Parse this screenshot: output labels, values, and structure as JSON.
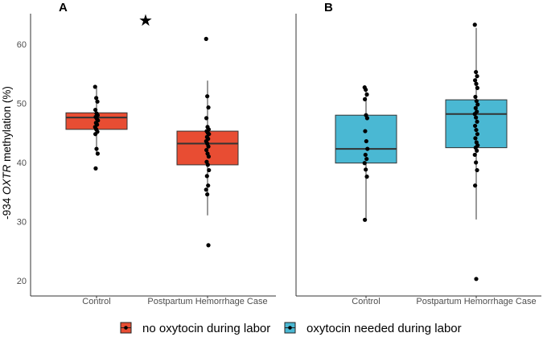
{
  "chart_data": {
    "type": "box",
    "ylabel_prefix": "-934 ",
    "ylabel_gene": "OXTR",
    "ylabel_suffix": " methylation (%)",
    "y_ticks": [
      20,
      30,
      40,
      50,
      60
    ],
    "ylim": [
      19,
      66
    ],
    "categories": [
      "Control",
      "Postpartum Hemorrhage Case"
    ],
    "annotation": "★",
    "panels": [
      {
        "label": "A",
        "series_name": "no oxytocin during labor",
        "color": "#e84d33",
        "boxes": [
          {
            "category": "Control",
            "q1": 45.6,
            "median": 47.6,
            "q3": 48.4,
            "points": [
              52.8,
              50.9,
              50.3,
              48.9,
              48.3,
              48.0,
              47.7,
              47.4,
              47.1,
              46.7,
              46.4,
              46.0,
              45.6,
              45.2,
              44.8,
              42.3,
              41.5,
              39.0
            ]
          },
          {
            "category": "Postpartum Hemorrhage Case",
            "q1": 39.6,
            "median": 43.2,
            "q3": 45.3,
            "points": [
              60.9,
              51.2,
              49.3,
              47.5,
              46.0,
              45.6,
              45.3,
              45.0,
              44.8,
              44.3,
              44.0,
              43.6,
              43.2,
              42.7,
              42.1,
              41.5,
              41.0,
              40.1,
              39.6,
              38.7,
              37.7,
              36.1,
              35.4,
              34.6,
              26.0
            ]
          }
        ]
      },
      {
        "label": "B",
        "series_name": "oxytocin needed during labor",
        "color": "#4ab8d3",
        "boxes": [
          {
            "category": "Control",
            "q1": 39.9,
            "median": 42.3,
            "q3": 48.0,
            "points": [
              52.7,
              52.3,
              51.5,
              50.7,
              48.0,
              47.5,
              45.3,
              43.6,
              42.3,
              41.3,
              40.6,
              39.9,
              38.8,
              37.6,
              30.3
            ]
          },
          {
            "category": "Postpartum Hemorrhage Case",
            "q1": 42.5,
            "median": 48.2,
            "q3": 50.6,
            "points": [
              63.3,
              55.3,
              54.6,
              53.9,
              53.3,
              52.6,
              51.1,
              50.4,
              49.8,
              49.2,
              48.6,
              48.2,
              47.6,
              46.9,
              46.2,
              45.5,
              44.8,
              44.1,
              43.4,
              42.9,
              42.5,
              42.0,
              41.3,
              40.0,
              38.7,
              36.1,
              20.3
            ]
          }
        ]
      }
    ]
  }
}
